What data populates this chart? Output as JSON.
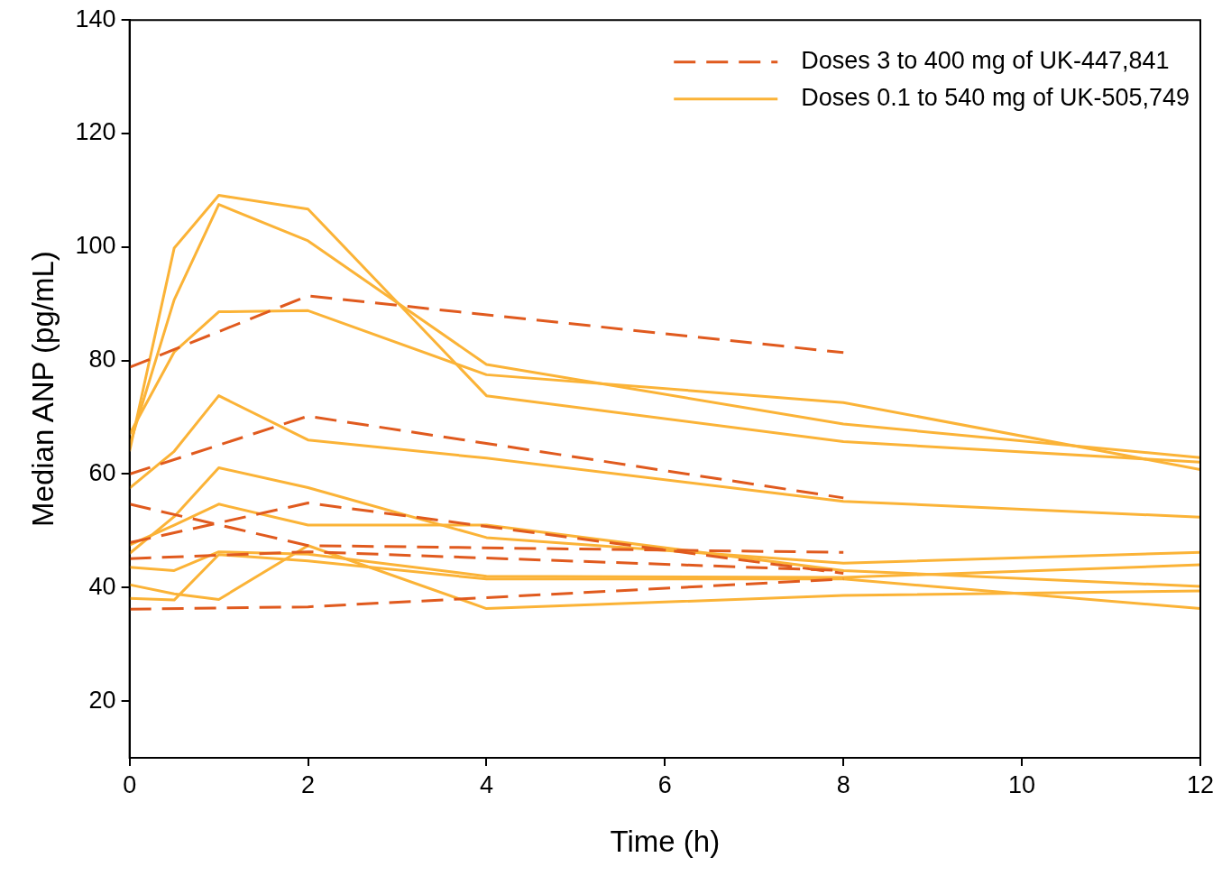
{
  "chart_data": {
    "type": "line",
    "xlabel": "Time (h)",
    "ylabel": "Median ANP (pg/mL)",
    "x": [
      0,
      0.5,
      1,
      2,
      4,
      8,
      12
    ],
    "xlim": [
      0,
      12
    ],
    "xticks": [
      0,
      2,
      4,
      6,
      8,
      10,
      12
    ],
    "ylim": [
      10,
      140
    ],
    "yticks": [
      20,
      40,
      60,
      80,
      100,
      120,
      140
    ],
    "grid": false,
    "legend": "top right",
    "marker": "none",
    "series": [
      {
        "name": "Doses 3 to 400 mg of UK-447,841",
        "color": "#e05a1e",
        "line_style": "dashed",
        "x": [
          0,
          2,
          8
        ],
        "values": [
          78.8,
          91.4,
          81.4
        ]
      },
      {
        "color": "#e05a1e",
        "line_style": "dashed",
        "x": [
          0,
          2,
          8
        ],
        "values": [
          60.0,
          70.2,
          55.8
        ]
      },
      {
        "color": "#e05a1e",
        "line_style": "dashed",
        "x": [
          0,
          2,
          8
        ],
        "values": [
          54.7,
          47.4,
          46.2
        ]
      },
      {
        "color": "#e05a1e",
        "line_style": "dashed",
        "x": [
          0,
          2,
          8
        ],
        "values": [
          47.9,
          54.9,
          42.5
        ]
      },
      {
        "color": "#e05a1e",
        "line_style": "dashed",
        "x": [
          0,
          2,
          8
        ],
        "values": [
          45.1,
          46.3,
          43.0
        ]
      },
      {
        "color": "#e05a1e",
        "line_style": "dashed",
        "x": [
          0,
          2,
          8
        ],
        "values": [
          36.2,
          36.6,
          41.5
        ]
      },
      {
        "name": "Doses 0.1 to 540 mg of UK-505,749",
        "color": "#fbb337",
        "line_style": "solid",
        "values": [
          64,
          99.8,
          109.1,
          106.7,
          73.8,
          65.7,
          62.1
        ]
      },
      {
        "color": "#fbb337",
        "line_style": "solid",
        "values": [
          65,
          90.7,
          107.5,
          101.1,
          79.3,
          68.8,
          62.9
        ]
      },
      {
        "color": "#fbb337",
        "line_style": "solid",
        "values": [
          67,
          81.5,
          88.6,
          88.8,
          77.5,
          72.6,
          60.8
        ]
      },
      {
        "color": "#fbb337",
        "line_style": "solid",
        "values": [
          57.5,
          64,
          73.8,
          66.0,
          62.8,
          55.2,
          52.4
        ]
      },
      {
        "color": "#fbb337",
        "line_style": "solid",
        "values": [
          46,
          52.5,
          61.1,
          57.6,
          48.8,
          44.3,
          46.2
        ]
      },
      {
        "color": "#fbb337",
        "line_style": "solid",
        "values": [
          47.5,
          51,
          54.7,
          51,
          51,
          43,
          40.2
        ]
      },
      {
        "color": "#fbb337",
        "line_style": "solid",
        "values": [
          43.6,
          43.0,
          46.3,
          45.9,
          42.0,
          41.8,
          44.0
        ]
      },
      {
        "color": "#fbb337",
        "line_style": "solid",
        "values": [
          40.5,
          38.9,
          37.9,
          47.4,
          36.3,
          38.6,
          39.4
        ]
      },
      {
        "color": "#fbb337",
        "line_style": "solid",
        "values": [
          38.1,
          37.8,
          45.8,
          44.7,
          41.5,
          41.5,
          36.3
        ]
      }
    ]
  }
}
